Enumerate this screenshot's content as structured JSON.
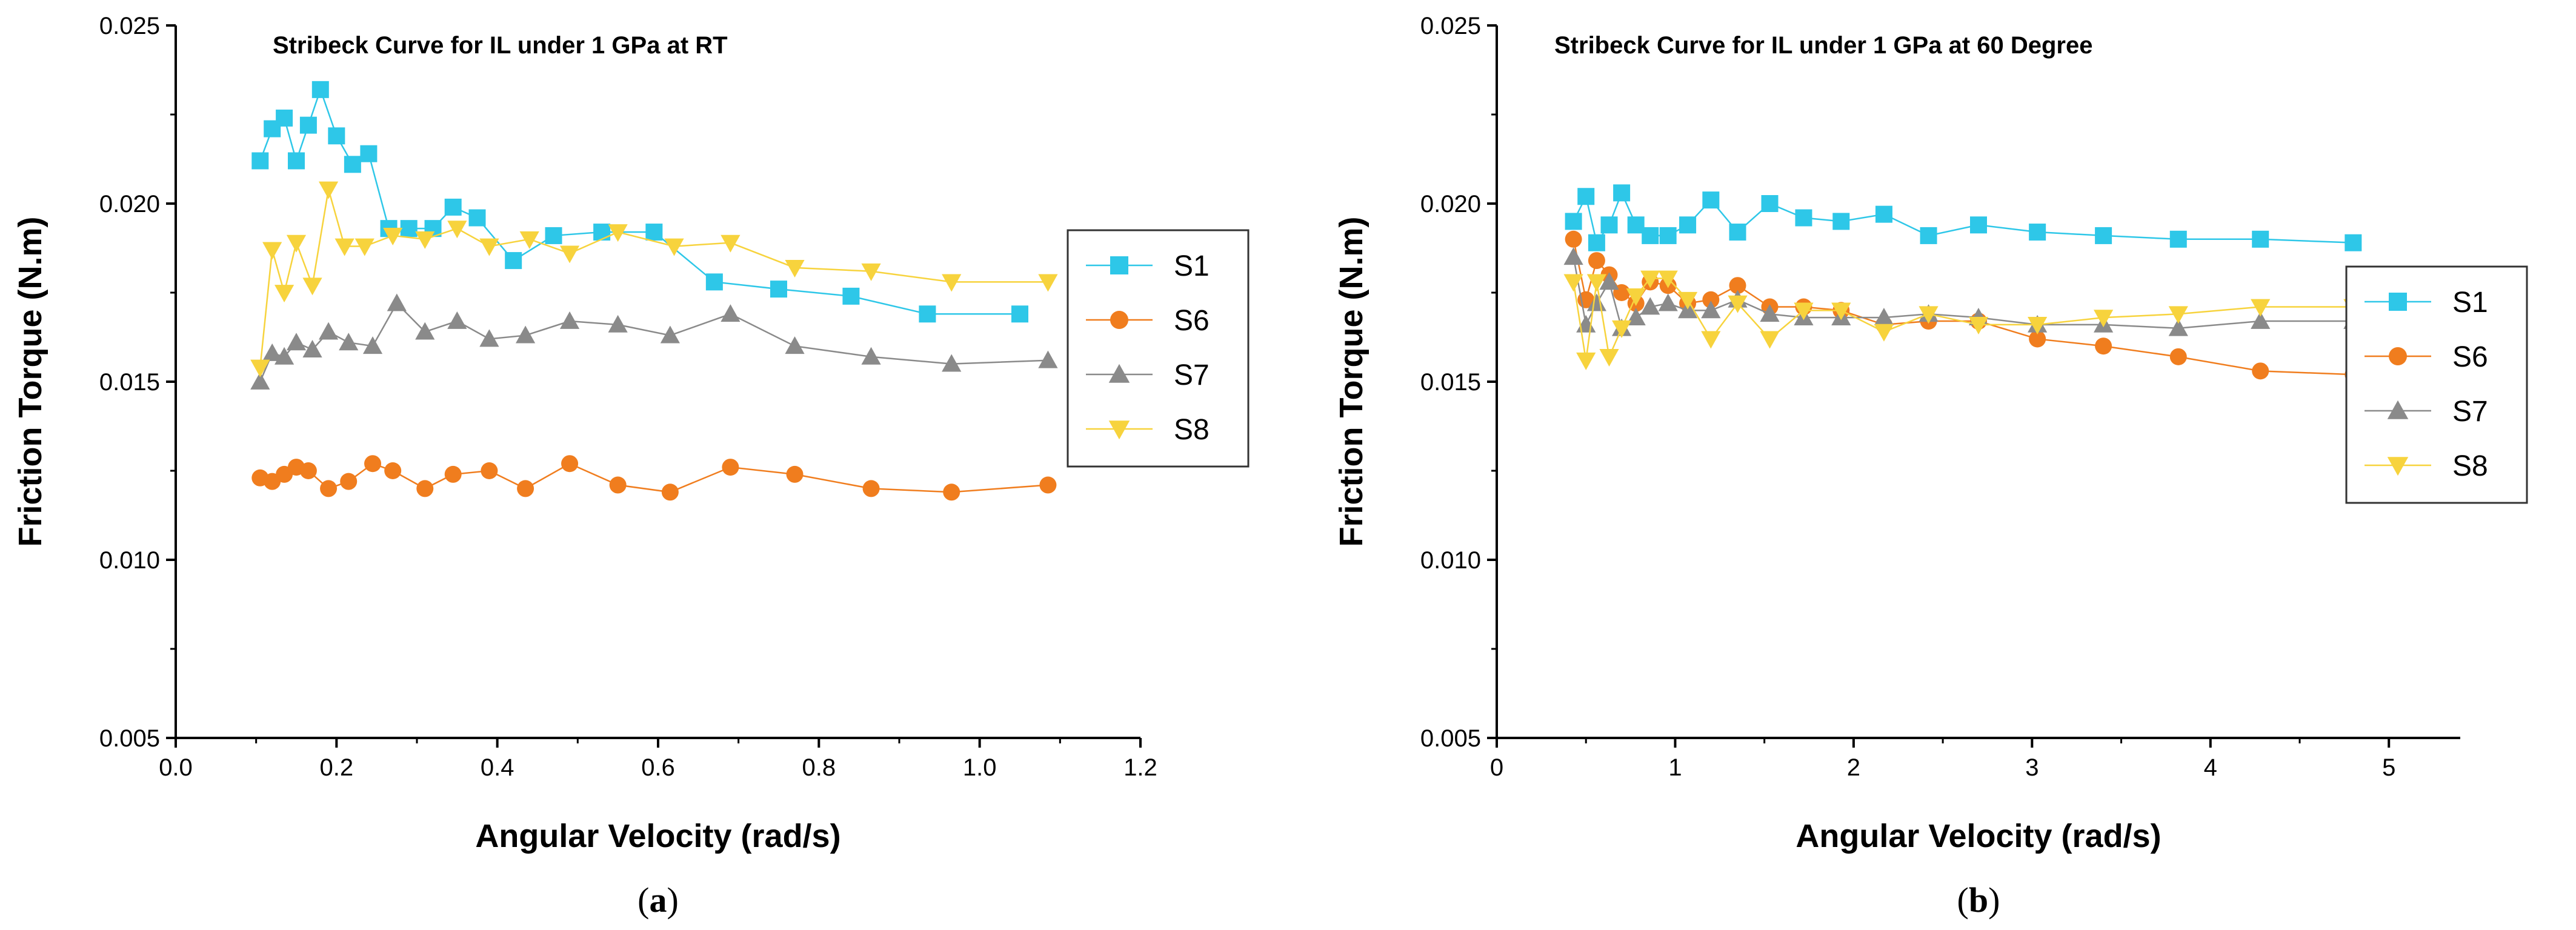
{
  "colors": {
    "S1": "#2ec7e8",
    "S6": "#f07d1e",
    "S7": "#8a8a8a",
    "S8": "#f7d33d"
  },
  "chart_data": [
    {
      "type": "line",
      "title": "Stribeck Curve for IL under 1 GPa at RT",
      "xlabel": "Angular Velocity (rad/s)",
      "ylabel": "Friction Torque (N.m)",
      "panel_label": "a",
      "xlim": [
        0.0,
        1.2
      ],
      "ylim": [
        0.005,
        0.025
      ],
      "xticks": [
        0.0,
        0.2,
        0.4,
        0.6,
        0.8,
        1.0,
        1.2
      ],
      "xtick_labels": [
        "0.0",
        "0.2",
        "0.4",
        "0.6",
        "0.8",
        "1.0",
        "1.2"
      ],
      "yticks": [
        0.005,
        0.01,
        0.015,
        0.02,
        0.025
      ],
      "ytick_labels": [
        "0.005",
        "0.010",
        "0.015",
        "0.020",
        "0.025"
      ],
      "grid": false,
      "legend_position": "right",
      "series": [
        {
          "name": "S1",
          "marker": "square",
          "x": [
            0.105,
            0.12,
            0.135,
            0.15,
            0.165,
            0.18,
            0.2,
            0.22,
            0.24,
            0.265,
            0.29,
            0.32,
            0.345,
            0.375,
            0.42,
            0.47,
            0.53,
            0.595,
            0.67,
            0.75,
            0.84,
            0.935,
            1.05
          ],
          "y": [
            0.0212,
            0.0221,
            0.0224,
            0.0212,
            0.0222,
            0.0232,
            0.0219,
            0.0211,
            0.0214,
            0.0193,
            0.0193,
            0.0193,
            0.0199,
            0.0196,
            0.0184,
            0.0191,
            0.0192,
            0.0192,
            0.0178,
            0.0176,
            0.0174,
            0.0169,
            0.0169
          ]
        },
        {
          "name": "S6",
          "marker": "circle",
          "x": [
            0.105,
            0.12,
            0.135,
            0.15,
            0.165,
            0.19,
            0.215,
            0.245,
            0.27,
            0.31,
            0.345,
            0.39,
            0.435,
            0.49,
            0.55,
            0.615,
            0.69,
            0.77,
            0.865,
            0.965,
            1.085
          ],
          "y": [
            0.0123,
            0.0122,
            0.0124,
            0.0126,
            0.0125,
            0.012,
            0.0122,
            0.0127,
            0.0125,
            0.012,
            0.0124,
            0.0125,
            0.012,
            0.0127,
            0.0121,
            0.0119,
            0.0126,
            0.0124,
            0.012,
            0.0119,
            0.0121
          ]
        },
        {
          "name": "S7",
          "marker": "triangle-up",
          "x": [
            0.105,
            0.12,
            0.135,
            0.15,
            0.17,
            0.19,
            0.215,
            0.245,
            0.275,
            0.31,
            0.35,
            0.39,
            0.435,
            0.49,
            0.55,
            0.615,
            0.69,
            0.77,
            0.865,
            0.965,
            1.085
          ],
          "y": [
            0.015,
            0.0158,
            0.0157,
            0.0161,
            0.0159,
            0.0164,
            0.0161,
            0.016,
            0.0172,
            0.0164,
            0.0167,
            0.0162,
            0.0163,
            0.0167,
            0.0166,
            0.0163,
            0.0169,
            0.016,
            0.0157,
            0.0155,
            0.0156
          ]
        },
        {
          "name": "S8",
          "marker": "triangle-down",
          "x": [
            0.105,
            0.12,
            0.135,
            0.15,
            0.17,
            0.19,
            0.21,
            0.235,
            0.27,
            0.31,
            0.35,
            0.39,
            0.44,
            0.49,
            0.55,
            0.62,
            0.69,
            0.77,
            0.865,
            0.965,
            1.085
          ],
          "y": [
            0.0154,
            0.0187,
            0.0175,
            0.0189,
            0.0177,
            0.0204,
            0.0188,
            0.0188,
            0.0191,
            0.019,
            0.0193,
            0.0188,
            0.019,
            0.0186,
            0.0192,
            0.0188,
            0.0189,
            0.0182,
            0.0181,
            0.0178,
            0.0178
          ]
        }
      ]
    },
    {
      "type": "line",
      "title": "Stribeck Curve for IL under 1 GPa at 60 Degree",
      "xlabel": "Angular Velocity (rad/s)",
      "ylabel": "Friction Torque (N.m)",
      "panel_label": "b",
      "xlim": [
        0,
        5.4
      ],
      "ylim": [
        0.005,
        0.025
      ],
      "xticks": [
        0,
        1,
        2,
        3,
        4,
        5
      ],
      "xtick_labels": [
        "0",
        "1",
        "2",
        "3",
        "4",
        "5"
      ],
      "yticks": [
        0.005,
        0.01,
        0.015,
        0.02,
        0.025
      ],
      "ytick_labels": [
        "0.005",
        "0.010",
        "0.015",
        "0.020",
        "0.025"
      ],
      "grid": false,
      "legend_position": "right",
      "series": [
        {
          "name": "S1",
          "marker": "square",
          "x": [
            0.43,
            0.5,
            0.56,
            0.63,
            0.7,
            0.78,
            0.86,
            0.96,
            1.07,
            1.2,
            1.35,
            1.53,
            1.72,
            1.93,
            2.17,
            2.42,
            2.7,
            3.03,
            3.4,
            3.82,
            4.28,
            4.8
          ],
          "y": [
            0.0195,
            0.0202,
            0.0189,
            0.0194,
            0.0203,
            0.0194,
            0.0191,
            0.0191,
            0.0194,
            0.0201,
            0.0192,
            0.02,
            0.0196,
            0.0195,
            0.0197,
            0.0191,
            0.0194,
            0.0192,
            0.0191,
            0.019,
            0.019,
            0.0189
          ]
        },
        {
          "name": "S6",
          "marker": "circle",
          "x": [
            0.43,
            0.5,
            0.56,
            0.63,
            0.7,
            0.78,
            0.86,
            0.96,
            1.07,
            1.2,
            1.35,
            1.53,
            1.72,
            1.93,
            2.17,
            2.42,
            2.7,
            3.03,
            3.4,
            3.82,
            4.28,
            4.8
          ],
          "y": [
            0.019,
            0.0173,
            0.0184,
            0.018,
            0.0175,
            0.0172,
            0.0178,
            0.0177,
            0.0172,
            0.0173,
            0.0177,
            0.0171,
            0.0171,
            0.017,
            0.0166,
            0.0167,
            0.0167,
            0.0162,
            0.016,
            0.0157,
            0.0153,
            0.0152
          ]
        },
        {
          "name": "S7",
          "marker": "triangle-up",
          "x": [
            0.43,
            0.5,
            0.56,
            0.63,
            0.7,
            0.78,
            0.86,
            0.96,
            1.07,
            1.2,
            1.35,
            1.53,
            1.72,
            1.93,
            2.17,
            2.42,
            2.7,
            3.03,
            3.4,
            3.82,
            4.28,
            4.8
          ],
          "y": [
            0.0185,
            0.0166,
            0.0172,
            0.0178,
            0.0165,
            0.0168,
            0.0171,
            0.0172,
            0.017,
            0.017,
            0.0173,
            0.0169,
            0.0168,
            0.0168,
            0.0168,
            0.0169,
            0.0168,
            0.0166,
            0.0166,
            0.0165,
            0.0167,
            0.0167
          ]
        },
        {
          "name": "S8",
          "marker": "triangle-down",
          "x": [
            0.43,
            0.5,
            0.56,
            0.63,
            0.7,
            0.78,
            0.86,
            0.96,
            1.07,
            1.2,
            1.35,
            1.53,
            1.72,
            1.93,
            2.17,
            2.42,
            2.7,
            3.03,
            3.4,
            3.82,
            4.28,
            4.8
          ],
          "y": [
            0.0178,
            0.0156,
            0.0178,
            0.0157,
            0.0165,
            0.0174,
            0.0179,
            0.0179,
            0.0173,
            0.0162,
            0.0172,
            0.0162,
            0.017,
            0.017,
            0.0164,
            0.0169,
            0.0166,
            0.0166,
            0.0168,
            0.0169,
            0.0171,
            0.0171
          ]
        }
      ]
    }
  ]
}
